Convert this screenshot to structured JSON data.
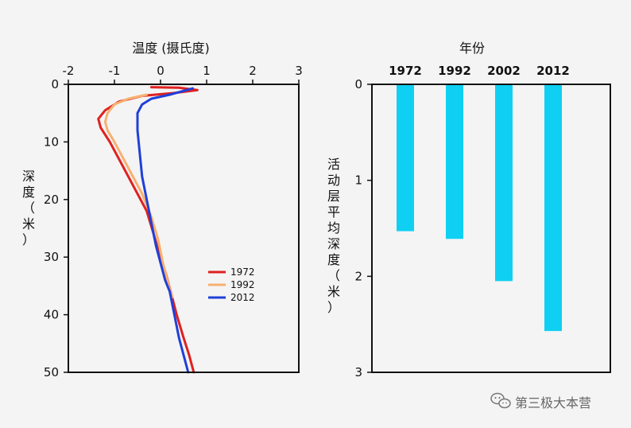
{
  "chart_data": [
    {
      "type": "line",
      "xlabel": "温度 (摄氏度)",
      "ylabel": "深度（米）",
      "xlim": [
        -2,
        3
      ],
      "ylim": [
        50,
        0
      ],
      "x_axis_position": "top",
      "x_ticks": [
        -2,
        -1,
        0,
        1,
        2,
        3
      ],
      "y_ticks": [
        0,
        10,
        20,
        30,
        40,
        50
      ],
      "legend_position": "lower-right",
      "series": [
        {
          "name": "1972",
          "color": "#e02020",
          "points": [
            [
              -0.2,
              0.5
            ],
            [
              0.4,
              0.6
            ],
            [
              0.8,
              1.0
            ],
            [
              0.3,
              1.5
            ],
            [
              -0.4,
              2.0
            ],
            [
              -0.9,
              3.0
            ],
            [
              -1.2,
              4.5
            ],
            [
              -1.35,
              6.0
            ],
            [
              -1.3,
              7.5
            ],
            [
              -1.1,
              10.0
            ],
            [
              -0.9,
              13.0
            ],
            [
              -0.7,
              16.0
            ],
            [
              -0.5,
              19.0
            ],
            [
              -0.3,
              22.0
            ],
            [
              -0.15,
              26.0
            ],
            [
              0.0,
              30.0
            ],
            [
              0.12,
              33.0
            ],
            [
              0.22,
              36.0
            ],
            [
              0.35,
              40.0
            ],
            [
              0.5,
              44.0
            ],
            [
              0.62,
              47.0
            ],
            [
              0.72,
              50.0
            ]
          ]
        },
        {
          "name": "1992",
          "color": "#f8b070",
          "points": [
            [
              -0.3,
              1.8
            ],
            [
              -0.7,
              2.5
            ],
            [
              -1.0,
              3.5
            ],
            [
              -1.15,
              5.0
            ],
            [
              -1.2,
              6.5
            ],
            [
              -1.15,
              8.0
            ],
            [
              -1.0,
              10.0
            ],
            [
              -0.8,
              13.0
            ],
            [
              -0.6,
              16.0
            ],
            [
              -0.4,
              19.0
            ],
            [
              -0.2,
              23.0
            ],
            [
              -0.05,
              27.0
            ],
            [
              0.05,
              31.0
            ],
            [
              0.15,
              34.0
            ],
            [
              0.25,
              37.0
            ]
          ]
        },
        {
          "name": "2012",
          "color": "#2040d8",
          "points": [
            [
              0.7,
              0.7
            ],
            [
              0.2,
              1.8
            ],
            [
              -0.2,
              2.5
            ],
            [
              -0.4,
              3.5
            ],
            [
              -0.5,
              5.0
            ],
            [
              -0.5,
              8.0
            ],
            [
              -0.45,
              12.0
            ],
            [
              -0.4,
              16.0
            ],
            [
              -0.3,
              20.0
            ],
            [
              -0.2,
              24.0
            ],
            [
              -0.1,
              28.0
            ],
            [
              0.0,
              31.0
            ],
            [
              0.1,
              34.0
            ],
            [
              0.2,
              36.0
            ],
            [
              0.3,
              40.0
            ],
            [
              0.4,
              44.0
            ],
            [
              0.5,
              47.0
            ],
            [
              0.6,
              50.0
            ]
          ]
        }
      ]
    },
    {
      "type": "bar",
      "xlabel": "年份",
      "ylabel": "活动层平均深度（米）",
      "x_axis_position": "top",
      "categories": [
        "1972",
        "1992",
        "2002",
        "2012"
      ],
      "values": [
        1.53,
        1.61,
        2.05,
        2.57
      ],
      "ylim": [
        0,
        3
      ],
      "y_ticks": [
        0,
        1,
        2,
        3
      ],
      "bar_color": "#0fd0f2"
    }
  ],
  "watermark": {
    "text": "第三极大本营",
    "icon": "wechat-icon"
  }
}
